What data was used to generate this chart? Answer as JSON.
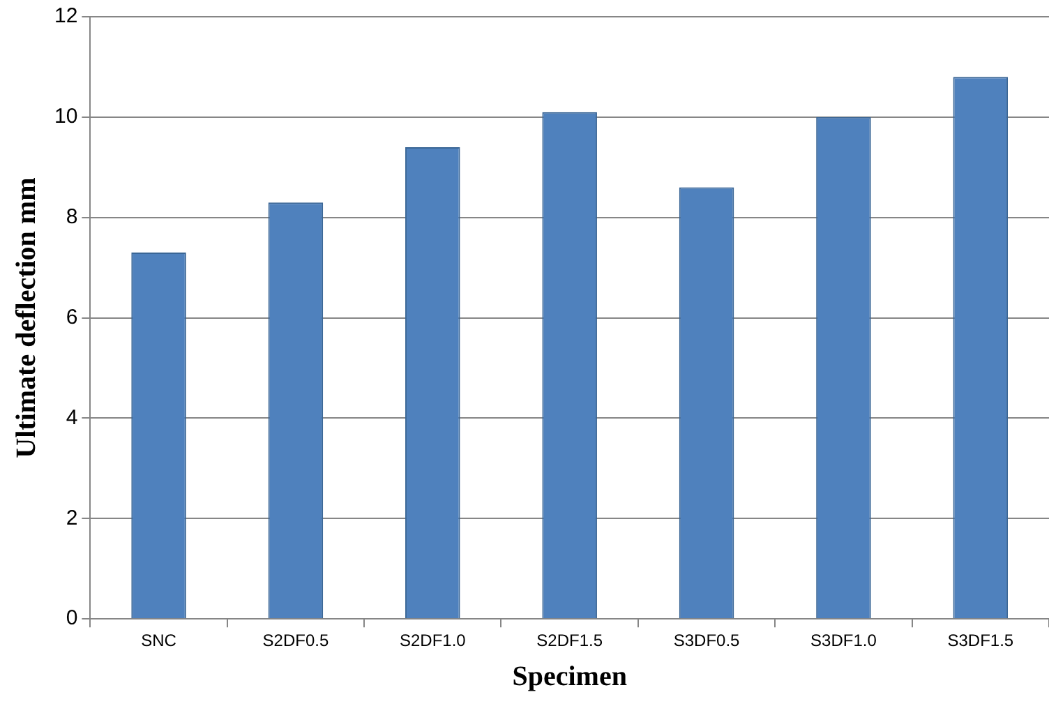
{
  "chart_data": {
    "type": "bar",
    "xlabel": "Specimen",
    "ylabel": "Ultimate deflection mm",
    "categories": [
      "SNC",
      "S2DF0.5",
      "S2DF1.0",
      "S2DF1.5",
      "S3DF0.5",
      "S3DF1.0",
      "S3DF1.5"
    ],
    "values": [
      7.3,
      8.3,
      9.4,
      10.1,
      8.6,
      10.0,
      10.8
    ],
    "color": "#4f81bd",
    "ylim": [
      0,
      12
    ],
    "yticks": [
      0,
      2,
      4,
      6,
      8,
      10,
      12
    ],
    "grid": "y",
    "legend": false
  }
}
